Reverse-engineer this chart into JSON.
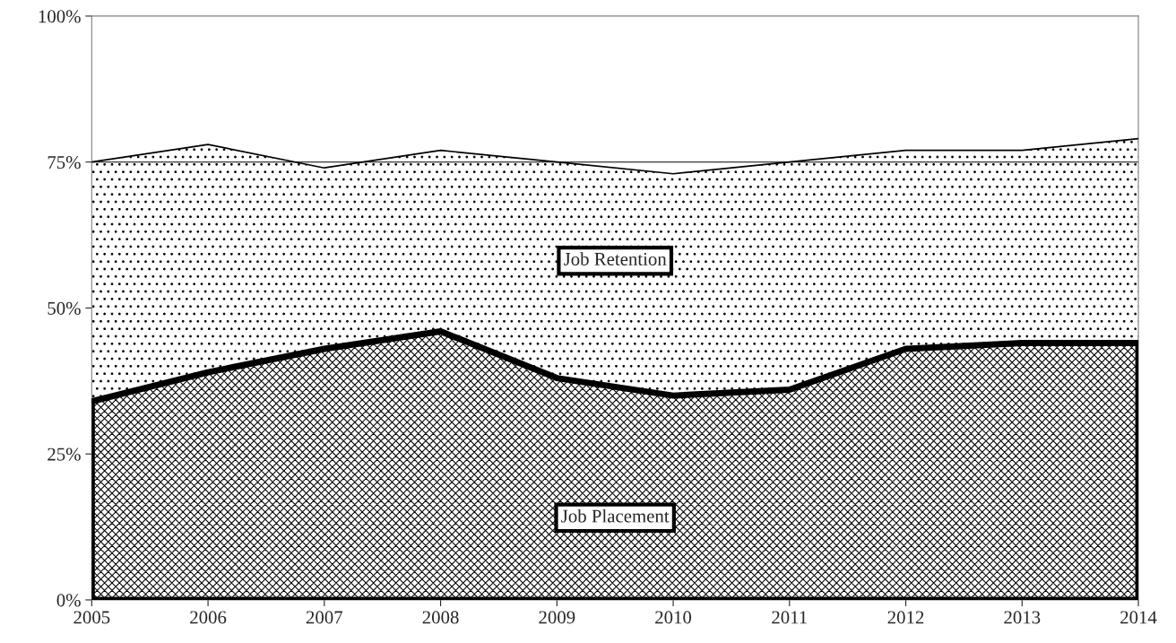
{
  "chart_data": {
    "type": "area",
    "stacked": true,
    "x": [
      2005,
      2006,
      2007,
      2008,
      2009,
      2010,
      2011,
      2012,
      2013,
      2014
    ],
    "series": [
      {
        "name": "Job Placement",
        "color": "#000000",
        "values": [
          34,
          39,
          43,
          46,
          38,
          35,
          36,
          43,
          44,
          44
        ]
      },
      {
        "name": "Job Retention",
        "color": "#000000",
        "values": [
          41,
          39,
          31,
          31,
          37,
          38,
          39,
          34,
          33,
          35
        ]
      }
    ],
    "xlim": [
      2005,
      2014
    ],
    "xticks": [
      2005,
      2006,
      2007,
      2008,
      2009,
      2010,
      2011,
      2012,
      2013,
      2014
    ],
    "ylim": [
      0,
      100
    ],
    "yticks": [
      {
        "value": 0,
        "label": "0%"
      },
      {
        "value": 25,
        "label": "25%"
      },
      {
        "value": 50,
        "label": "50%"
      },
      {
        "value": 75,
        "label": "75%"
      },
      {
        "value": 100,
        "label": "100%"
      }
    ],
    "ref_lines": [
      {
        "axis": "y",
        "value": 75,
        "label": null,
        "color": "#000000"
      }
    ],
    "grid": false,
    "legend": false
  }
}
